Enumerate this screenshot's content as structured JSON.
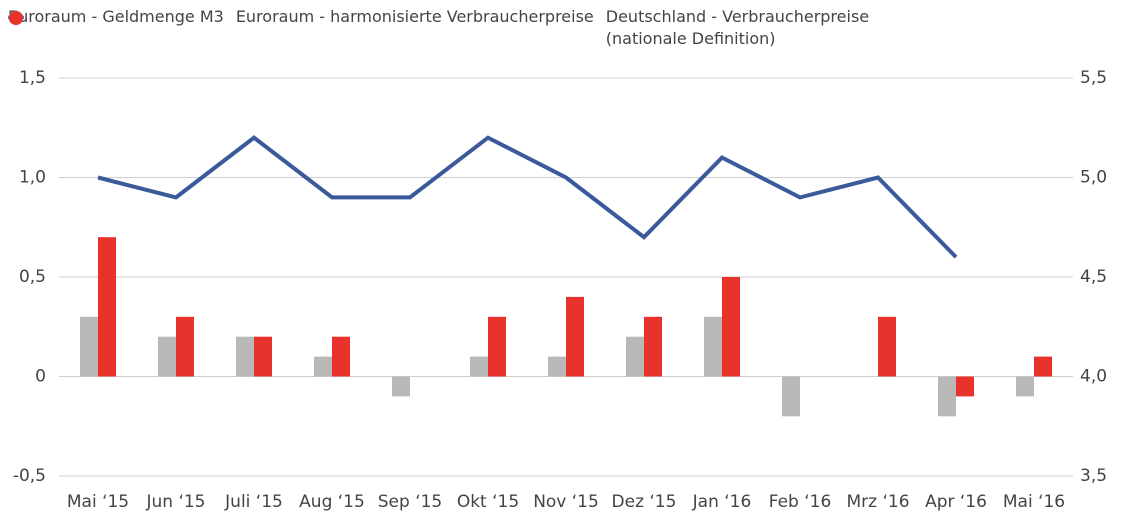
{
  "chart_data": {
    "type": "bar",
    "categories": [
      "Mai ‘15",
      "Jun ‘15",
      "Juli ‘15",
      "Aug ‘15",
      "Sep ‘15",
      "Okt ‘15",
      "Nov ‘15",
      "Dez ‘15",
      "Jan ‘16",
      "Feb ‘16",
      "Mrz ‘16",
      "Apr ‘16",
      "Mai ‘16"
    ],
    "series": [
      {
        "name": "Euroraum - Geldmenge M3",
        "type": "line",
        "axis": "y2",
        "color": "#3a5a9b",
        "values": [
          5.0,
          4.9,
          5.2,
          4.9,
          4.9,
          5.2,
          5.0,
          4.7,
          5.1,
          4.9,
          5.0,
          4.6,
          null
        ]
      },
      {
        "name": "Euroraum - harmonisierte Verbraucherpreise",
        "type": "bar",
        "color": "#b9b9b9",
        "values": [
          0.3,
          0.2,
          0.2,
          0.1,
          -0.1,
          0.1,
          0.1,
          0.2,
          0.3,
          -0.2,
          0,
          -0.2,
          -0.1
        ]
      },
      {
        "name": "Deutschland - Verbraucherpreise (nationale Definition)",
        "type": "bar",
        "color": "#e8322c",
        "values": [
          0.7,
          0.3,
          0.2,
          0.2,
          0,
          0.3,
          0.4,
          0.3,
          0.5,
          0,
          0.3,
          -0.1,
          0.1
        ]
      }
    ],
    "ylim": [
      -0.5,
      1.5
    ],
    "yticks": [
      {
        "value": -0.5,
        "label": "-0,5"
      },
      0,
      {
        "value": 0.5,
        "label": "0,5"
      },
      {
        "value": 1.0,
        "label": "1,0"
      },
      {
        "value": 1.5,
        "label": "1,5"
      }
    ],
    "y2lim": [
      3.5,
      5.5
    ],
    "y2ticks": [
      {
        "value": 3.5,
        "label": "3,5"
      },
      {
        "value": 4.0,
        "label": "4,0"
      },
      {
        "value": 4.5,
        "label": "4,5"
      },
      {
        "value": 5.0,
        "label": "5,0"
      },
      {
        "value": 5.5,
        "label": "5,5"
      }
    ],
    "grid": true,
    "legend": "top"
  }
}
